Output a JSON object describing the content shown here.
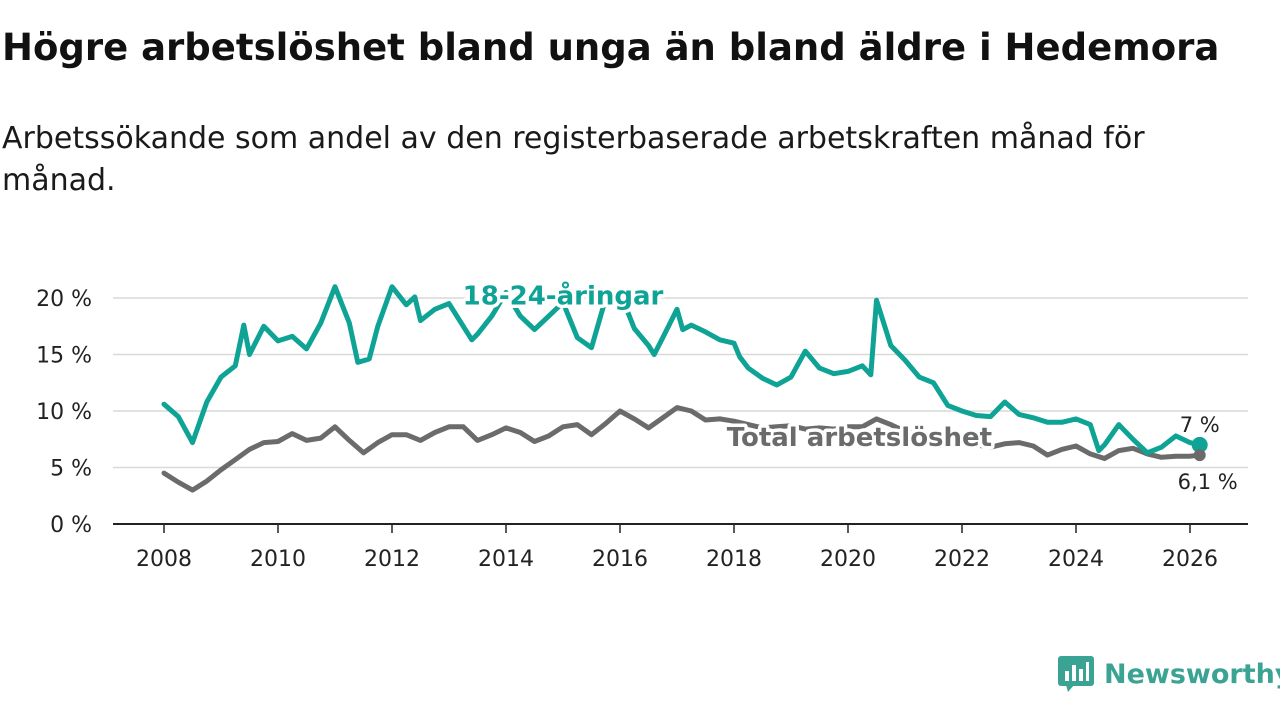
{
  "header": {
    "title": "Högre arbetslöshet bland unga än bland äldre i Hedemora",
    "subtitle": "Arbetssökande som andel av den registerbaserade arbetskraften månad för månad."
  },
  "branding": {
    "name": "Newsworthy",
    "icon": "newsworthy-logo-icon"
  },
  "colors": {
    "youth": "#0fa396",
    "total": "#6b6b6b",
    "grid": "#d9d9d9",
    "axis": "#222222",
    "brand": "#3aa394"
  },
  "chart_data": {
    "type": "line",
    "title": "Högre arbetslöshet bland unga än bland äldre i Hedemora",
    "xlabel": "",
    "ylabel": "",
    "xlim": [
      2008,
      2026.4
    ],
    "ylim": [
      0,
      20
    ],
    "x_ticks": [
      2008,
      2010,
      2012,
      2014,
      2016,
      2018,
      2020,
      2022,
      2024,
      2026
    ],
    "x_tick_labels": [
      "2008",
      "2010",
      "2012",
      "2014",
      "2016",
      "2018",
      "2020",
      "2022",
      "2024",
      "2026"
    ],
    "y_ticks": [
      0,
      5,
      10,
      15,
      20
    ],
    "y_tick_labels": [
      "0 %",
      "5 %",
      "10 %",
      "15 %",
      "20 %"
    ],
    "grid": true,
    "series": [
      {
        "name": "18-24-åringar",
        "color": "#0fa396",
        "end_label": "7 %",
        "points": [
          [
            2008.0,
            10.6
          ],
          [
            2008.25,
            9.5
          ],
          [
            2008.5,
            7.2
          ],
          [
            2008.75,
            10.8
          ],
          [
            2009.0,
            13.0
          ],
          [
            2009.25,
            14.0
          ],
          [
            2009.4,
            17.6
          ],
          [
            2009.5,
            15.0
          ],
          [
            2009.75,
            17.5
          ],
          [
            2010.0,
            16.2
          ],
          [
            2010.25,
            16.6
          ],
          [
            2010.5,
            15.5
          ],
          [
            2010.75,
            17.8
          ],
          [
            2011.0,
            21.0
          ],
          [
            2011.25,
            17.8
          ],
          [
            2011.4,
            14.3
          ],
          [
            2011.6,
            14.6
          ],
          [
            2011.75,
            17.5
          ],
          [
            2012.0,
            21.0
          ],
          [
            2012.25,
            19.4
          ],
          [
            2012.4,
            20.1
          ],
          [
            2012.5,
            18.0
          ],
          [
            2012.75,
            19.0
          ],
          [
            2013.0,
            19.5
          ],
          [
            2013.25,
            17.5
          ],
          [
            2013.4,
            16.3
          ],
          [
            2013.5,
            16.8
          ],
          [
            2013.75,
            18.4
          ],
          [
            2014.0,
            20.5
          ],
          [
            2014.25,
            18.4
          ],
          [
            2014.5,
            17.2
          ],
          [
            2014.75,
            18.4
          ],
          [
            2015.0,
            19.6
          ],
          [
            2015.25,
            16.5
          ],
          [
            2015.5,
            15.6
          ],
          [
            2015.75,
            20.0
          ],
          [
            2016.0,
            20.5
          ],
          [
            2016.25,
            17.3
          ],
          [
            2016.5,
            15.8
          ],
          [
            2016.6,
            15.0
          ],
          [
            2016.75,
            16.5
          ],
          [
            2017.0,
            19.0
          ],
          [
            2017.1,
            17.2
          ],
          [
            2017.25,
            17.6
          ],
          [
            2017.5,
            17.0
          ],
          [
            2017.75,
            16.3
          ],
          [
            2018.0,
            16.0
          ],
          [
            2018.1,
            14.8
          ],
          [
            2018.25,
            13.8
          ],
          [
            2018.5,
            12.9
          ],
          [
            2018.75,
            12.3
          ],
          [
            2019.0,
            13.0
          ],
          [
            2019.25,
            15.3
          ],
          [
            2019.5,
            13.8
          ],
          [
            2019.75,
            13.3
          ],
          [
            2020.0,
            13.5
          ],
          [
            2020.25,
            14.0
          ],
          [
            2020.4,
            13.2
          ],
          [
            2020.5,
            19.8
          ],
          [
            2020.75,
            15.8
          ],
          [
            2021.0,
            14.5
          ],
          [
            2021.25,
            13.0
          ],
          [
            2021.5,
            12.5
          ],
          [
            2021.75,
            10.5
          ],
          [
            2022.0,
            10.0
          ],
          [
            2022.25,
            9.6
          ],
          [
            2022.5,
            9.5
          ],
          [
            2022.75,
            10.8
          ],
          [
            2023.0,
            9.7
          ],
          [
            2023.25,
            9.4
          ],
          [
            2023.5,
            9.0
          ],
          [
            2023.75,
            9.0
          ],
          [
            2024.0,
            9.3
          ],
          [
            2024.25,
            8.8
          ],
          [
            2024.4,
            6.5
          ],
          [
            2024.5,
            7.0
          ],
          [
            2024.75,
            8.8
          ],
          [
            2025.0,
            7.5
          ],
          [
            2025.25,
            6.3
          ],
          [
            2025.5,
            6.8
          ],
          [
            2025.75,
            7.8
          ],
          [
            2026.0,
            7.2
          ],
          [
            2026.17,
            7.0
          ]
        ]
      },
      {
        "name": "Total arbetslöshet",
        "color": "#6b6b6b",
        "end_label": "6,1 %",
        "points": [
          [
            2008.0,
            4.5
          ],
          [
            2008.25,
            3.7
          ],
          [
            2008.5,
            3.0
          ],
          [
            2008.75,
            3.8
          ],
          [
            2009.0,
            4.8
          ],
          [
            2009.25,
            5.7
          ],
          [
            2009.5,
            6.6
          ],
          [
            2009.75,
            7.2
          ],
          [
            2010.0,
            7.3
          ],
          [
            2010.25,
            8.0
          ],
          [
            2010.5,
            7.4
          ],
          [
            2010.75,
            7.6
          ],
          [
            2011.0,
            8.6
          ],
          [
            2011.25,
            7.4
          ],
          [
            2011.5,
            6.3
          ],
          [
            2011.75,
            7.2
          ],
          [
            2012.0,
            7.9
          ],
          [
            2012.25,
            7.9
          ],
          [
            2012.5,
            7.4
          ],
          [
            2012.75,
            8.1
          ],
          [
            2013.0,
            8.6
          ],
          [
            2013.25,
            8.6
          ],
          [
            2013.5,
            7.4
          ],
          [
            2013.75,
            7.9
          ],
          [
            2014.0,
            8.5
          ],
          [
            2014.25,
            8.1
          ],
          [
            2014.5,
            7.3
          ],
          [
            2014.75,
            7.8
          ],
          [
            2015.0,
            8.6
          ],
          [
            2015.25,
            8.8
          ],
          [
            2015.5,
            7.9
          ],
          [
            2015.75,
            8.9
          ],
          [
            2016.0,
            10.0
          ],
          [
            2016.25,
            9.3
          ],
          [
            2016.5,
            8.5
          ],
          [
            2016.75,
            9.4
          ],
          [
            2017.0,
            10.3
          ],
          [
            2017.25,
            10.0
          ],
          [
            2017.5,
            9.2
          ],
          [
            2017.75,
            9.3
          ],
          [
            2018.0,
            9.1
          ],
          [
            2018.25,
            8.8
          ],
          [
            2018.5,
            8.5
          ],
          [
            2018.75,
            8.6
          ],
          [
            2019.0,
            8.7
          ],
          [
            2019.25,
            8.4
          ],
          [
            2019.5,
            8.5
          ],
          [
            2019.75,
            8.4
          ],
          [
            2020.0,
            8.6
          ],
          [
            2020.25,
            8.6
          ],
          [
            2020.5,
            9.3
          ],
          [
            2020.75,
            8.8
          ],
          [
            2021.0,
            8.2
          ],
          [
            2021.25,
            8.0
          ],
          [
            2021.5,
            7.8
          ],
          [
            2021.75,
            7.6
          ],
          [
            2022.0,
            7.3
          ],
          [
            2022.25,
            7.0
          ],
          [
            2022.5,
            6.8
          ],
          [
            2022.75,
            7.1
          ],
          [
            2023.0,
            7.2
          ],
          [
            2023.25,
            6.9
          ],
          [
            2023.5,
            6.1
          ],
          [
            2023.75,
            6.6
          ],
          [
            2024.0,
            6.9
          ],
          [
            2024.25,
            6.2
          ],
          [
            2024.5,
            5.8
          ],
          [
            2024.75,
            6.5
          ],
          [
            2025.0,
            6.7
          ],
          [
            2025.25,
            6.2
          ],
          [
            2025.5,
            5.9
          ],
          [
            2025.75,
            6.0
          ],
          [
            2026.0,
            6.0
          ],
          [
            2026.17,
            6.1
          ]
        ]
      }
    ],
    "annotations": [
      {
        "text": "18-24-åringar",
        "series": "18-24-åringar",
        "x": 2015.0,
        "y": 20.2
      },
      {
        "text": "Total arbetslöshet",
        "series": "Total arbetslöshet",
        "x": 2020.2,
        "y": 7.7
      }
    ],
    "legend": "inline labels"
  }
}
